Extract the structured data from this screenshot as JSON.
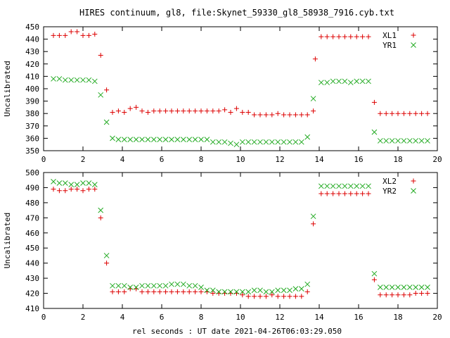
{
  "title": "HIRES continuum, gl8, file:Skynet_59330_gl8_58938_7916.cyb.txt",
  "xlabel": "rel seconds : UT date 2021-04-26T06:03:29.050",
  "colors": {
    "red": "#dd0000",
    "green": "#22aa22"
  },
  "chart_data": [
    {
      "type": "scatter",
      "xlim": [
        0,
        20
      ],
      "ylim": [
        350,
        450
      ],
      "xticks": [
        0,
        2,
        4,
        6,
        8,
        10,
        12,
        14,
        16,
        18,
        20
      ],
      "yticks": [
        350,
        360,
        370,
        380,
        390,
        400,
        410,
        420,
        430,
        440,
        450
      ],
      "ylabel": "Uncalibrated",
      "legend_position": "top-right",
      "series": [
        {
          "name": "XL1",
          "marker": "plus",
          "color": "#dd0000",
          "points": [
            [
              0.5,
              443
            ],
            [
              0.8,
              443
            ],
            [
              1.1,
              443
            ],
            [
              1.4,
              446
            ],
            [
              1.7,
              446
            ],
            [
              2.0,
              443
            ],
            [
              2.3,
              443
            ],
            [
              2.6,
              444
            ],
            [
              2.9,
              427
            ],
            [
              3.2,
              399
            ],
            [
              3.5,
              381
            ],
            [
              3.8,
              382
            ],
            [
              4.1,
              381
            ],
            [
              4.4,
              384
            ],
            [
              4.7,
              385
            ],
            [
              5.0,
              382
            ],
            [
              5.3,
              381
            ],
            [
              5.6,
              382
            ],
            [
              5.9,
              382
            ],
            [
              6.2,
              382
            ],
            [
              6.5,
              382
            ],
            [
              6.8,
              382
            ],
            [
              7.1,
              382
            ],
            [
              7.4,
              382
            ],
            [
              7.7,
              382
            ],
            [
              8.0,
              382
            ],
            [
              8.3,
              382
            ],
            [
              8.6,
              382
            ],
            [
              8.9,
              382
            ],
            [
              9.2,
              383
            ],
            [
              9.5,
              381
            ],
            [
              9.8,
              384
            ],
            [
              10.1,
              381
            ],
            [
              10.4,
              381
            ],
            [
              10.7,
              379
            ],
            [
              11.0,
              379
            ],
            [
              11.3,
              379
            ],
            [
              11.6,
              379
            ],
            [
              11.9,
              380
            ],
            [
              12.2,
              379
            ],
            [
              12.5,
              379
            ],
            [
              12.8,
              379
            ],
            [
              13.1,
              379
            ],
            [
              13.4,
              379
            ],
            [
              13.7,
              382
            ],
            [
              13.8,
              424
            ],
            [
              14.1,
              442
            ],
            [
              14.4,
              442
            ],
            [
              14.7,
              442
            ],
            [
              15.0,
              442
            ],
            [
              15.3,
              442
            ],
            [
              15.6,
              442
            ],
            [
              15.9,
              442
            ],
            [
              16.2,
              442
            ],
            [
              16.5,
              442
            ],
            [
              16.8,
              389
            ],
            [
              17.1,
              380
            ],
            [
              17.4,
              380
            ],
            [
              17.7,
              380
            ],
            [
              18.0,
              380
            ],
            [
              18.3,
              380
            ],
            [
              18.6,
              380
            ],
            [
              18.9,
              380
            ],
            [
              19.2,
              380
            ],
            [
              19.5,
              380
            ]
          ]
        },
        {
          "name": "YR1",
          "marker": "cross",
          "color": "#22aa22",
          "points": [
            [
              0.5,
              408
            ],
            [
              0.8,
              408
            ],
            [
              1.1,
              407
            ],
            [
              1.4,
              407
            ],
            [
              1.7,
              407
            ],
            [
              2.0,
              407
            ],
            [
              2.3,
              407
            ],
            [
              2.6,
              406
            ],
            [
              2.9,
              395
            ],
            [
              3.2,
              373
            ],
            [
              3.5,
              360
            ],
            [
              3.8,
              359
            ],
            [
              4.1,
              359
            ],
            [
              4.4,
              359
            ],
            [
              4.7,
              359
            ],
            [
              5.0,
              359
            ],
            [
              5.3,
              359
            ],
            [
              5.6,
              359
            ],
            [
              5.9,
              359
            ],
            [
              6.2,
              359
            ],
            [
              6.5,
              359
            ],
            [
              6.8,
              359
            ],
            [
              7.1,
              359
            ],
            [
              7.4,
              359
            ],
            [
              7.7,
              359
            ],
            [
              8.0,
              359
            ],
            [
              8.3,
              359
            ],
            [
              8.6,
              357
            ],
            [
              8.9,
              357
            ],
            [
              9.2,
              357
            ],
            [
              9.5,
              356
            ],
            [
              9.8,
              355
            ],
            [
              10.1,
              357
            ],
            [
              10.4,
              357
            ],
            [
              10.7,
              357
            ],
            [
              11.0,
              357
            ],
            [
              11.3,
              357
            ],
            [
              11.6,
              357
            ],
            [
              11.9,
              357
            ],
            [
              12.2,
              357
            ],
            [
              12.5,
              357
            ],
            [
              12.8,
              357
            ],
            [
              13.1,
              357
            ],
            [
              13.4,
              361
            ],
            [
              13.7,
              392
            ],
            [
              14.1,
              405
            ],
            [
              14.4,
              405
            ],
            [
              14.7,
              406
            ],
            [
              15.0,
              406
            ],
            [
              15.3,
              406
            ],
            [
              15.6,
              405
            ],
            [
              15.9,
              406
            ],
            [
              16.2,
              406
            ],
            [
              16.5,
              406
            ],
            [
              16.8,
              365
            ],
            [
              17.1,
              358
            ],
            [
              17.4,
              358
            ],
            [
              17.7,
              358
            ],
            [
              18.0,
              358
            ],
            [
              18.3,
              358
            ],
            [
              18.6,
              358
            ],
            [
              18.9,
              358
            ],
            [
              19.2,
              358
            ],
            [
              19.5,
              358
            ]
          ]
        }
      ]
    },
    {
      "type": "scatter",
      "xlim": [
        0,
        20
      ],
      "ylim": [
        410,
        500
      ],
      "xticks": [
        0,
        2,
        4,
        6,
        8,
        10,
        12,
        14,
        16,
        18,
        20
      ],
      "yticks": [
        410,
        420,
        430,
        440,
        450,
        460,
        470,
        480,
        490,
        500
      ],
      "ylabel": "Uncalibrated",
      "legend_position": "top-right",
      "series": [
        {
          "name": "XL2",
          "marker": "plus",
          "color": "#dd0000",
          "points": [
            [
              0.5,
              489
            ],
            [
              0.8,
              488
            ],
            [
              1.1,
              488
            ],
            [
              1.4,
              489
            ],
            [
              1.7,
              489
            ],
            [
              2.0,
              488
            ],
            [
              2.3,
              489
            ],
            [
              2.6,
              489
            ],
            [
              2.9,
              470
            ],
            [
              3.2,
              440
            ],
            [
              3.5,
              421
            ],
            [
              3.8,
              421
            ],
            [
              4.1,
              421
            ],
            [
              4.4,
              423
            ],
            [
              4.7,
              423
            ],
            [
              5.0,
              421
            ],
            [
              5.3,
              421
            ],
            [
              5.6,
              421
            ],
            [
              5.9,
              421
            ],
            [
              6.2,
              421
            ],
            [
              6.5,
              421
            ],
            [
              6.8,
              421
            ],
            [
              7.1,
              421
            ],
            [
              7.4,
              421
            ],
            [
              7.7,
              421
            ],
            [
              8.0,
              421
            ],
            [
              8.3,
              421
            ],
            [
              8.6,
              420
            ],
            [
              8.9,
              420
            ],
            [
              9.2,
              420
            ],
            [
              9.5,
              420
            ],
            [
              9.8,
              420
            ],
            [
              10.1,
              419
            ],
            [
              10.4,
              418
            ],
            [
              10.7,
              418
            ],
            [
              11.0,
              418
            ],
            [
              11.3,
              418
            ],
            [
              11.6,
              419
            ],
            [
              11.9,
              418
            ],
            [
              12.2,
              418
            ],
            [
              12.5,
              418
            ],
            [
              12.8,
              418
            ],
            [
              13.1,
              418
            ],
            [
              13.4,
              421
            ],
            [
              13.7,
              466
            ],
            [
              14.1,
              486
            ],
            [
              14.4,
              486
            ],
            [
              14.7,
              486
            ],
            [
              15.0,
              486
            ],
            [
              15.3,
              486
            ],
            [
              15.6,
              486
            ],
            [
              15.9,
              486
            ],
            [
              16.2,
              486
            ],
            [
              16.5,
              486
            ],
            [
              16.8,
              429
            ],
            [
              17.1,
              419
            ],
            [
              17.4,
              419
            ],
            [
              17.7,
              419
            ],
            [
              18.0,
              419
            ],
            [
              18.3,
              419
            ],
            [
              18.6,
              419
            ],
            [
              18.9,
              420
            ],
            [
              19.2,
              420
            ],
            [
              19.5,
              420
            ]
          ]
        },
        {
          "name": "YR2",
          "marker": "cross",
          "color": "#22aa22",
          "points": [
            [
              0.5,
              494
            ],
            [
              0.8,
              493
            ],
            [
              1.1,
              493
            ],
            [
              1.4,
              492
            ],
            [
              1.7,
              492
            ],
            [
              2.0,
              493
            ],
            [
              2.3,
              493
            ],
            [
              2.6,
              492
            ],
            [
              2.9,
              475
            ],
            [
              3.2,
              445
            ],
            [
              3.5,
              425
            ],
            [
              3.8,
              425
            ],
            [
              4.1,
              425
            ],
            [
              4.4,
              424
            ],
            [
              4.7,
              424
            ],
            [
              5.0,
              425
            ],
            [
              5.3,
              425
            ],
            [
              5.6,
              425
            ],
            [
              5.9,
              425
            ],
            [
              6.2,
              425
            ],
            [
              6.5,
              426
            ],
            [
              6.8,
              426
            ],
            [
              7.1,
              426
            ],
            [
              7.4,
              425
            ],
            [
              7.7,
              425
            ],
            [
              8.0,
              424
            ],
            [
              8.3,
              422
            ],
            [
              8.6,
              422
            ],
            [
              8.9,
              421
            ],
            [
              9.2,
              421
            ],
            [
              9.5,
              421
            ],
            [
              9.8,
              421
            ],
            [
              10.1,
              421
            ],
            [
              10.4,
              421
            ],
            [
              10.7,
              422
            ],
            [
              11.0,
              422
            ],
            [
              11.3,
              421
            ],
            [
              11.6,
              421
            ],
            [
              11.9,
              422
            ],
            [
              12.2,
              422
            ],
            [
              12.5,
              422
            ],
            [
              12.8,
              423
            ],
            [
              13.1,
              423
            ],
            [
              13.4,
              426
            ],
            [
              13.7,
              471
            ],
            [
              14.1,
              491
            ],
            [
              14.4,
              491
            ],
            [
              14.7,
              491
            ],
            [
              15.0,
              491
            ],
            [
              15.3,
              491
            ],
            [
              15.6,
              491
            ],
            [
              15.9,
              491
            ],
            [
              16.2,
              491
            ],
            [
              16.5,
              491
            ],
            [
              16.8,
              433
            ],
            [
              17.1,
              424
            ],
            [
              17.4,
              424
            ],
            [
              17.7,
              424
            ],
            [
              18.0,
              424
            ],
            [
              18.3,
              424
            ],
            [
              18.6,
              424
            ],
            [
              18.9,
              424
            ],
            [
              19.2,
              424
            ],
            [
              19.5,
              424
            ]
          ]
        }
      ]
    }
  ]
}
